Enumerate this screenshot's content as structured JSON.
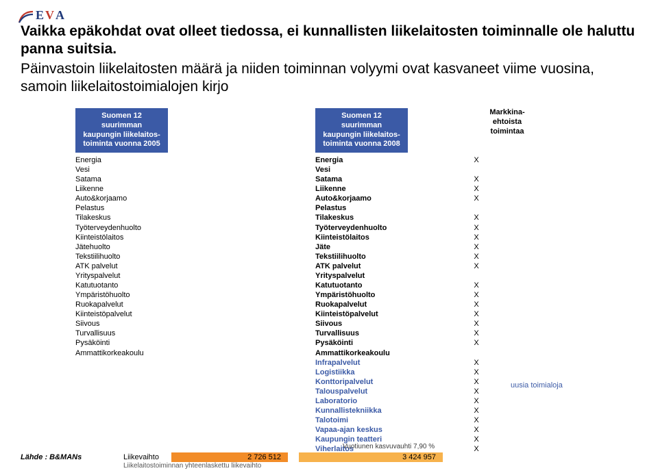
{
  "logo": {
    "e": "E",
    "v": "V",
    "a": "A"
  },
  "title": "Vaikka epäkohdat ovat olleet tiedossa, ei kunnallisten liikelaitosten toiminnalle ole haluttu panna suitsia.",
  "subtitle": "Päinvastoin liikelaitosten määrä ja niiden toiminnan volyymi ovat kasvaneet viime vuosina, samoin liikelaitostoimialojen kirjo",
  "header_left": [
    "Suomen 12 suurimman",
    "kaupungin liikelaitos-",
    "toiminta vuonna 2005"
  ],
  "header_right": [
    "Suomen 12 suurimman",
    "kaupungin liikelaitos-",
    "toiminta vuonna 2008"
  ],
  "header_mark": [
    "Markkina-",
    "ehtoista",
    "toimintaa"
  ],
  "left_items": [
    "Energia",
    "Vesi",
    "Satama",
    "Liikenne",
    "Auto&korjaamo",
    "Pelastus",
    "Tilakeskus",
    "Työterveydenhuolto",
    "Kiinteistölaitos",
    "Jätehuolto",
    "Tekstiilihuolto",
    "ATK palvelut",
    "Yrityspalvelut",
    "Katutuotanto",
    "Ympäristöhuolto",
    "Ruokapalvelut",
    "Kiinteistöpalvelut",
    "Siivous",
    "Turvallisuus",
    "Pysäköinti",
    "Ammattikorkeakoulu"
  ],
  "right_items": [
    {
      "label": "Energia",
      "bold": true,
      "mark": "X"
    },
    {
      "label": "Vesi",
      "bold": true,
      "mark": ""
    },
    {
      "label": "Satama",
      "bold": true,
      "mark": "X"
    },
    {
      "label": "Liikenne",
      "bold": true,
      "mark": "X"
    },
    {
      "label": "Auto&korjaamo",
      "bold": true,
      "mark": "X"
    },
    {
      "label": "Pelastus",
      "bold": true,
      "mark": ""
    },
    {
      "label": "Tilakeskus",
      "bold": true,
      "mark": "X"
    },
    {
      "label": "Työterveydenhuolto",
      "bold": true,
      "mark": "X"
    },
    {
      "label": "Kiinteistölaitos",
      "bold": true,
      "mark": "X"
    },
    {
      "label": "Jäte",
      "bold": true,
      "mark": "X"
    },
    {
      "label": "Tekstiilihuolto",
      "bold": true,
      "mark": "X"
    },
    {
      "label": "ATK palvelut",
      "bold": true,
      "mark": "X"
    },
    {
      "label": "Yrityspalvelut",
      "bold": true,
      "mark": ""
    },
    {
      "label": "Katutuotanto",
      "bold": true,
      "mark": "X"
    },
    {
      "label": "Ympäristöhuolto",
      "bold": true,
      "mark": "X"
    },
    {
      "label": "Ruokapalvelut",
      "bold": true,
      "mark": "X"
    },
    {
      "label": "Kiinteistöpalvelut",
      "bold": true,
      "mark": "X"
    },
    {
      "label": "Siivous",
      "bold": true,
      "mark": "X"
    },
    {
      "label": "Turvallisuus",
      "bold": true,
      "mark": "X"
    },
    {
      "label": "Pysäköinti",
      "bold": true,
      "mark": "X"
    },
    {
      "label": "Ammattikorkeakoulu",
      "bold": true,
      "mark": ""
    }
  ],
  "extra_items": [
    {
      "label": "Infrapalvelut",
      "mark": "X"
    },
    {
      "label": "Logistiikka",
      "mark": "X"
    },
    {
      "label": "Konttoripalvelut",
      "mark": "X"
    },
    {
      "label": "Talouspalvelut",
      "mark": "X"
    },
    {
      "label": "Laboratorio",
      "mark": "X"
    },
    {
      "label": "Kunnallistekniikka",
      "mark": "X"
    },
    {
      "label": "Talotoimi",
      "mark": "X"
    },
    {
      "label": "Vapaa-ajan keskus",
      "mark": "X"
    },
    {
      "label": "Kaupungin teatteri",
      "mark": "X"
    },
    {
      "label": "Viherlaitos",
      "mark": "X"
    }
  ],
  "new_tag": "uusia toimialoja",
  "growth_label": "Vuotiunen kasvuvauhti   7,90 %",
  "source": "Lähde : B&MANs",
  "rev_label": "Liikevaihto",
  "rev_left": "2 726 512",
  "rev_right": "3 424 957",
  "combined": "Liikelaitostoiminnan yhteenlaskettu liikevaihto",
  "colors": {
    "header_bg": "#3b5aa6",
    "extra_color": "#3b5aa6",
    "rev_left_bg": "#f28c28",
    "rev_right_bg": "#f7b24c"
  }
}
